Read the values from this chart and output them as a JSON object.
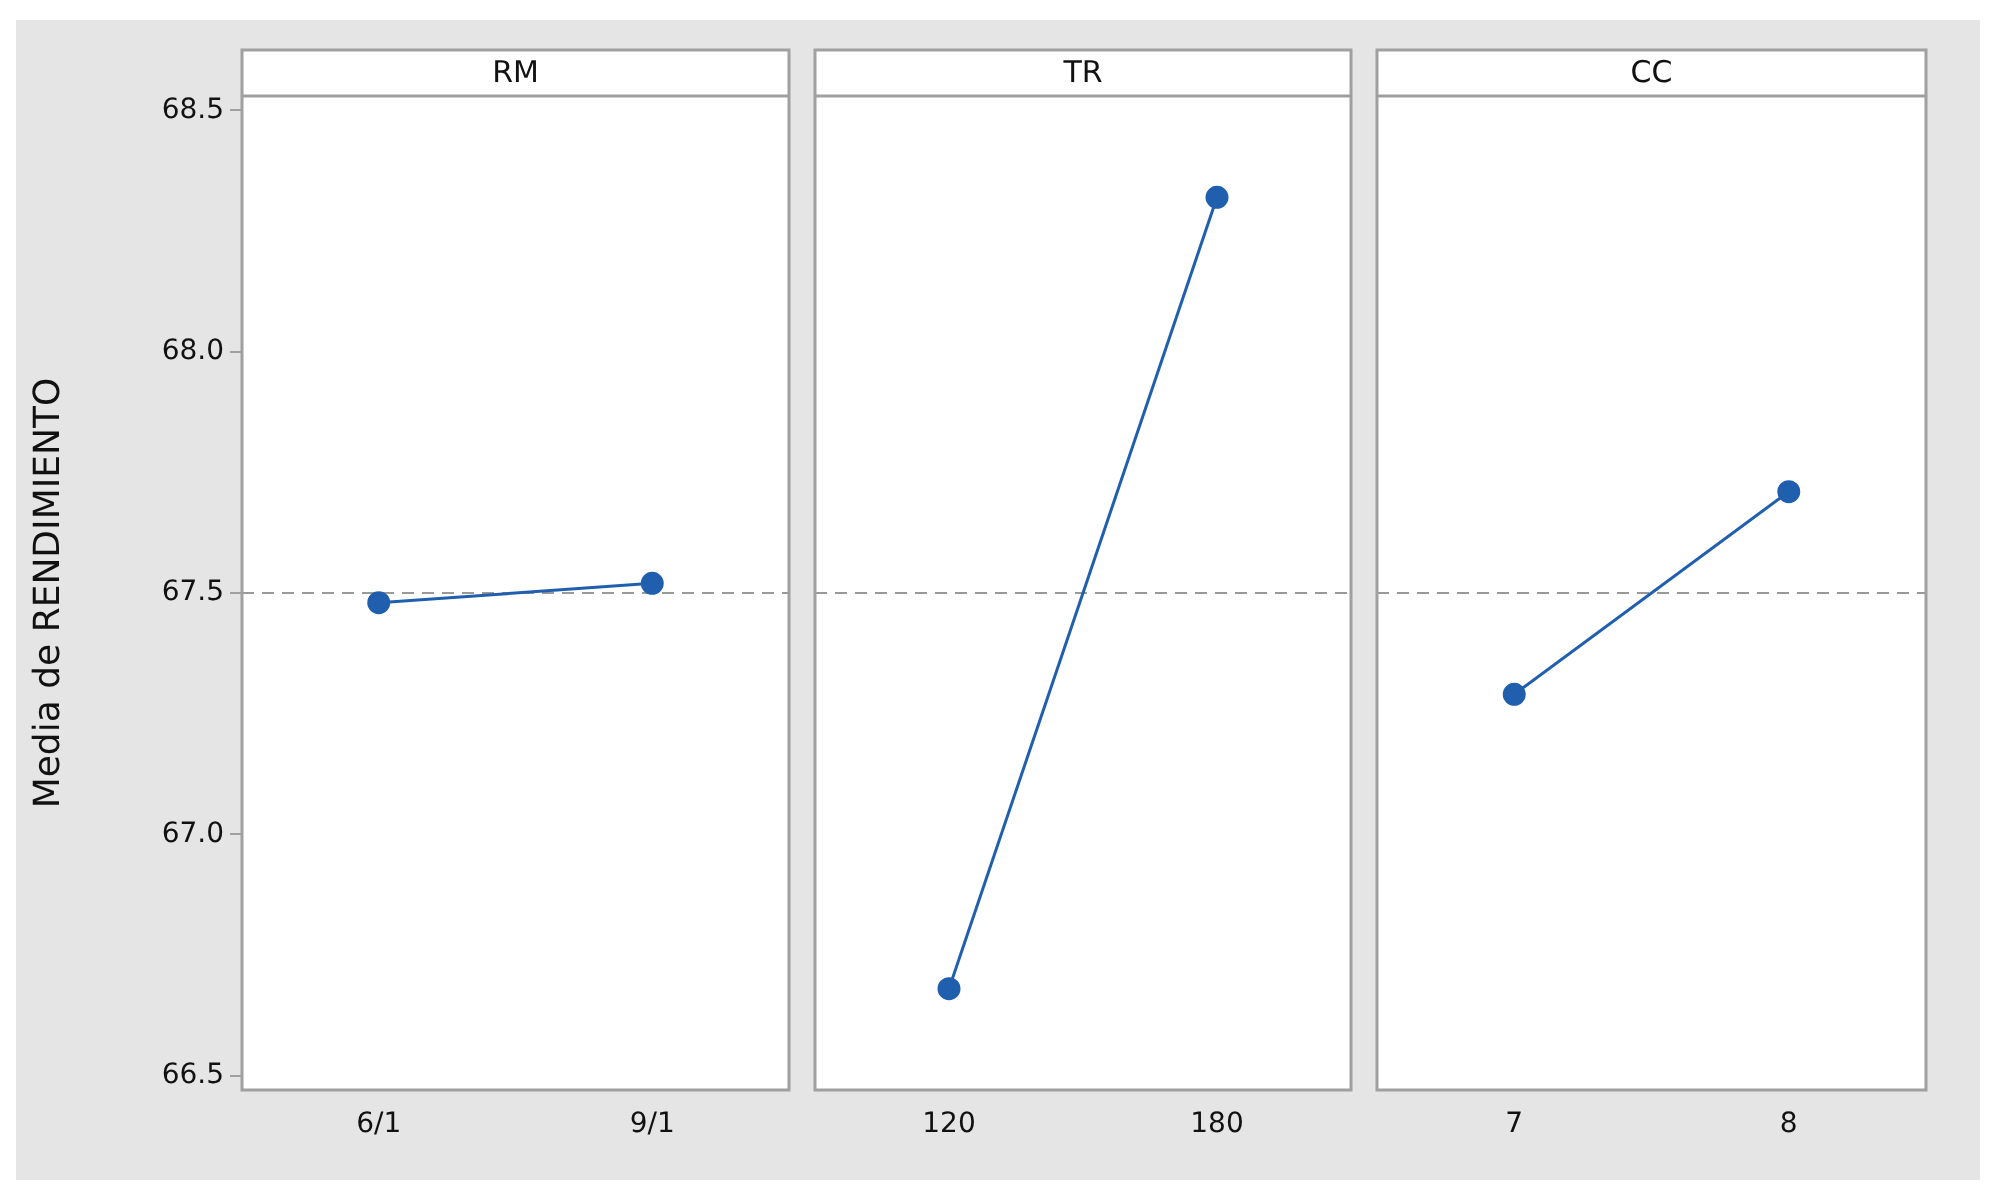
{
  "chart_data": [
    {
      "type": "line",
      "title": "RM",
      "ylabel": "Media de RENDIMIENTO",
      "categories": [
        "6/1",
        "9/1"
      ],
      "series": [
        {
          "color": "#1f5fad",
          "values": [
            67.48,
            67.52
          ]
        }
      ],
      "ylim": [
        66.47,
        68.53
      ],
      "yticks": [
        66.5,
        {
          "value": 67,
          "label": "67.0"
        },
        67.5,
        {
          "value": 68,
          "label": "68.0"
        },
        68.5
      ],
      "marker": "circle",
      "ref_lines": [
        {
          "axis": "y",
          "value": 67.5,
          "color": "#999999",
          "line_style": "dashed"
        }
      ]
    },
    {
      "type": "line",
      "title": "TR",
      "categories": [
        "120",
        "180"
      ],
      "series": [
        {
          "color": "#1f5fad",
          "values": [
            66.68,
            68.32
          ]
        }
      ],
      "ylim": [
        66.47,
        68.53
      ],
      "tick_labels": "x",
      "marker": "circle",
      "ref_lines": [
        {
          "axis": "y",
          "value": 67.5,
          "color": "#999999",
          "line_style": "dashed"
        }
      ]
    },
    {
      "type": "line",
      "title": "CC",
      "categories": [
        "7",
        "8"
      ],
      "series": [
        {
          "color": "#1f5fad",
          "values": [
            67.29,
            67.71
          ]
        }
      ],
      "ylim": [
        66.47,
        68.53
      ],
      "tick_labels": "x",
      "marker": "circle",
      "ref_lines": [
        {
          "axis": "y",
          "value": 67.5,
          "color": "#999999",
          "line_style": "dashed"
        }
      ]
    }
  ]
}
